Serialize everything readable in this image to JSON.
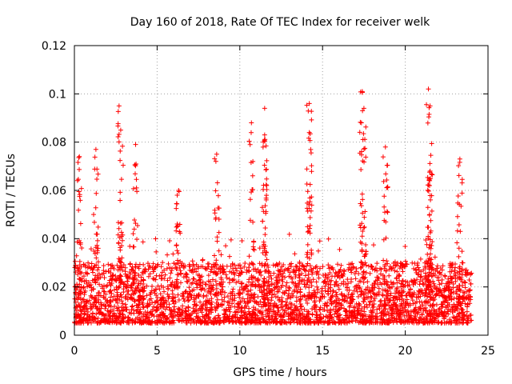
{
  "chart_data": {
    "type": "scatter",
    "title": "Day 160 of 2018, Rate Of TEC Index for receiver welk",
    "xlabel": "GPS time / hours",
    "ylabel": "ROTI / TECUs",
    "xlim": [
      0,
      25
    ],
    "ylim": [
      0,
      0.12
    ],
    "x_ticks": [
      0,
      5,
      10,
      15,
      20,
      25
    ],
    "x_tick_labels": [
      "0",
      "5",
      "10",
      "15",
      "20",
      "25"
    ],
    "y_ticks": [
      0,
      0.02,
      0.04,
      0.06,
      0.08,
      0.1,
      0.12
    ],
    "y_tick_labels": [
      "0",
      "0.02",
      "0.04",
      "0.06",
      "0.08",
      "0.1",
      "0.12"
    ],
    "grid": true,
    "marker": "+",
    "color": "#ff0000",
    "series": [
      {
        "name": "ROTI",
        "x_range": [
          0,
          24
        ],
        "typical_range": [
          0.005,
          0.03
        ],
        "notable_peaks": [
          {
            "x": 0.3,
            "y": 0.074
          },
          {
            "x": 1.3,
            "y": 0.077
          },
          {
            "x": 2.7,
            "y": 0.095
          },
          {
            "x": 2.8,
            "y": 0.085
          },
          {
            "x": 3.7,
            "y": 0.079
          },
          {
            "x": 6.3,
            "y": 0.06
          },
          {
            "x": 8.6,
            "y": 0.075
          },
          {
            "x": 10.7,
            "y": 0.088
          },
          {
            "x": 11.5,
            "y": 0.094
          },
          {
            "x": 11.5,
            "y": 0.083
          },
          {
            "x": 14.2,
            "y": 0.096
          },
          {
            "x": 14.2,
            "y": 0.084
          },
          {
            "x": 17.4,
            "y": 0.101
          },
          {
            "x": 17.5,
            "y": 0.094
          },
          {
            "x": 18.8,
            "y": 0.078
          },
          {
            "x": 21.4,
            "y": 0.102
          },
          {
            "x": 21.5,
            "y": 0.095
          },
          {
            "x": 21.5,
            "y": 0.068
          },
          {
            "x": 23.3,
            "y": 0.073
          }
        ]
      }
    ]
  }
}
